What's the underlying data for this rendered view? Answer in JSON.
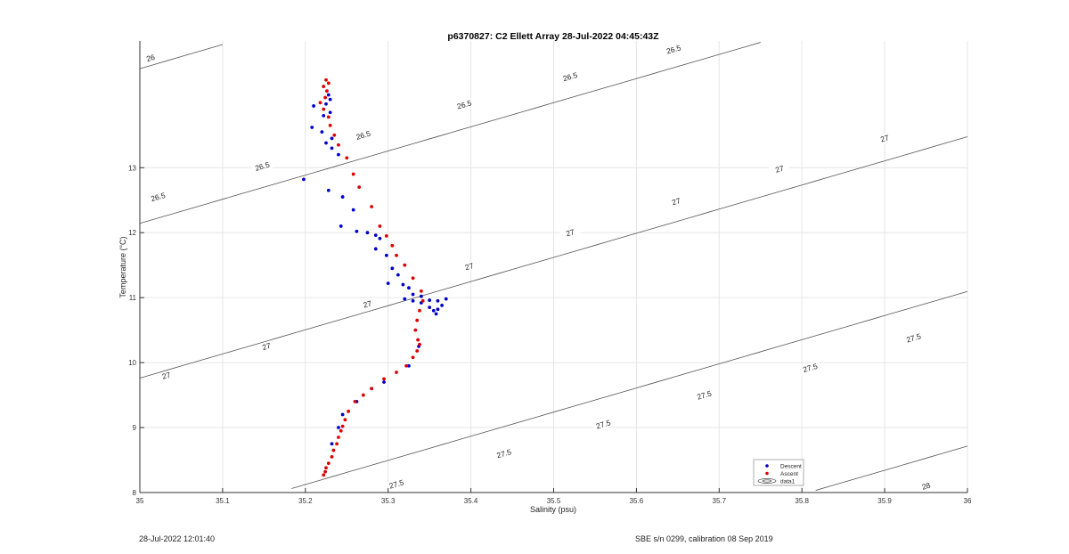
{
  "chart_data": {
    "type": "scatter",
    "title": "p6370827: C2 Ellett Array 28-Jul-2022 04:45:43Z",
    "xlabel": "Salinity (psu)",
    "ylabel": "Temperature (°C)",
    "xlim": [
      35,
      36
    ],
    "ylim": [
      8,
      14.95
    ],
    "xticks": [
      "35",
      "35.1",
      "35.2",
      "35.3",
      "35.4",
      "35.5",
      "35.6",
      "35.7",
      "35.8",
      "35.9",
      "36"
    ],
    "xtick_values": [
      35,
      35.1,
      35.2,
      35.3,
      35.4,
      35.5,
      35.6,
      35.7,
      35.8,
      35.9,
      36
    ],
    "yticks": [
      "8",
      "9",
      "10",
      "11",
      "12",
      "13"
    ],
    "ytick_values": [
      8,
      9,
      10,
      11,
      12,
      13
    ],
    "grid": true,
    "legend_position": "bottom-right",
    "series": [
      {
        "name": "Descent",
        "color": "#0000cc",
        "points": [
          [
            35.228,
            14.12
          ],
          [
            35.23,
            14.05
          ],
          [
            35.225,
            13.98
          ],
          [
            35.21,
            13.95
          ],
          [
            35.23,
            13.85
          ],
          [
            35.222,
            13.8
          ],
          [
            35.208,
            13.62
          ],
          [
            35.22,
            13.55
          ],
          [
            35.232,
            13.45
          ],
          [
            35.225,
            13.38
          ],
          [
            35.232,
            13.3
          ],
          [
            35.24,
            13.2
          ],
          [
            35.198,
            12.82
          ],
          [
            35.228,
            12.65
          ],
          [
            35.245,
            12.55
          ],
          [
            35.258,
            12.35
          ],
          [
            35.243,
            12.1
          ],
          [
            35.262,
            12.02
          ],
          [
            35.275,
            12.0
          ],
          [
            35.285,
            11.96
          ],
          [
            35.29,
            11.91
          ],
          [
            35.285,
            11.75
          ],
          [
            35.298,
            11.65
          ],
          [
            35.305,
            11.45
          ],
          [
            35.312,
            11.35
          ],
          [
            35.3,
            11.22
          ],
          [
            35.318,
            11.2
          ],
          [
            35.325,
            11.15
          ],
          [
            35.33,
            11.05
          ],
          [
            35.34,
            11.02
          ],
          [
            35.35,
            10.96
          ],
          [
            35.36,
            10.95
          ],
          [
            35.37,
            10.98
          ],
          [
            35.365,
            10.88
          ],
          [
            35.36,
            10.82
          ],
          [
            35.358,
            10.75
          ],
          [
            35.33,
            10.95
          ],
          [
            35.32,
            10.98
          ],
          [
            35.34,
            10.92
          ],
          [
            35.35,
            10.85
          ],
          [
            35.355,
            10.8
          ],
          [
            35.337,
            10.25
          ],
          [
            35.325,
            9.95
          ],
          [
            35.295,
            9.7
          ],
          [
            35.28,
            9.6
          ],
          [
            35.262,
            9.4
          ],
          [
            35.245,
            9.2
          ],
          [
            35.24,
            9.0
          ],
          [
            35.232,
            8.75
          ]
        ]
      },
      {
        "name": "Ascent",
        "color": "#dd0000",
        "points": [
          [
            35.225,
            14.35
          ],
          [
            35.228,
            14.3
          ],
          [
            35.222,
            14.25
          ],
          [
            35.226,
            14.18
          ],
          [
            35.224,
            14.08
          ],
          [
            35.218,
            14.0
          ],
          [
            35.222,
            13.9
          ],
          [
            35.228,
            13.78
          ],
          [
            35.23,
            13.65
          ],
          [
            35.235,
            13.5
          ],
          [
            35.24,
            13.35
          ],
          [
            35.25,
            13.15
          ],
          [
            35.258,
            12.9
          ],
          [
            35.265,
            12.7
          ],
          [
            35.28,
            12.4
          ],
          [
            35.29,
            12.1
          ],
          [
            35.298,
            11.95
          ],
          [
            35.305,
            11.8
          ],
          [
            35.31,
            11.65
          ],
          [
            35.32,
            11.5
          ],
          [
            35.33,
            11.3
          ],
          [
            35.34,
            11.1
          ],
          [
            35.342,
            10.95
          ],
          [
            35.338,
            10.8
          ],
          [
            35.335,
            10.65
          ],
          [
            35.333,
            10.5
          ],
          [
            35.336,
            10.35
          ],
          [
            35.338,
            10.28
          ],
          [
            35.335,
            10.18
          ],
          [
            35.33,
            10.08
          ],
          [
            35.322,
            9.95
          ],
          [
            35.31,
            9.85
          ],
          [
            35.295,
            9.75
          ],
          [
            35.28,
            9.6
          ],
          [
            35.27,
            9.5
          ],
          [
            35.26,
            9.4
          ],
          [
            35.252,
            9.25
          ],
          [
            35.248,
            9.12
          ],
          [
            35.245,
            9.02
          ],
          [
            35.243,
            8.95
          ],
          [
            35.24,
            8.85
          ],
          [
            35.238,
            8.75
          ],
          [
            35.234,
            8.65
          ],
          [
            35.232,
            8.55
          ],
          [
            35.228,
            8.45
          ],
          [
            35.225,
            8.38
          ],
          [
            35.224,
            8.32
          ],
          [
            35.222,
            8.27
          ]
        ]
      }
    ],
    "contours": [
      {
        "label": "26",
        "label_positions": [
          [
            35.013,
            14.69
          ]
        ]
      },
      {
        "label": "26.5",
        "label_positions": [
          [
            35.022,
            12.55
          ],
          [
            35.148,
            13.02
          ],
          [
            35.27,
            13.5
          ],
          [
            35.392,
            13.97
          ],
          [
            35.52,
            14.4
          ],
          [
            35.645,
            14.82
          ]
        ]
      },
      {
        "label": "27",
        "label_positions": [
          [
            35.032,
            9.8
          ],
          [
            35.153,
            10.25
          ],
          [
            35.275,
            10.9
          ],
          [
            35.398,
            11.48
          ],
          [
            35.52,
            12.0
          ],
          [
            35.648,
            12.48
          ],
          [
            35.773,
            12.98
          ],
          [
            35.9,
            13.45
          ]
        ]
      },
      {
        "label": "27.5",
        "label_positions": [
          [
            35.31,
            8.13
          ],
          [
            35.44,
            8.6
          ],
          [
            35.56,
            9.05
          ],
          [
            35.682,
            9.5
          ],
          [
            35.81,
            9.92
          ],
          [
            35.935,
            10.38
          ],
          [
            36.035,
            10.8
          ]
        ]
      },
      {
        "label": "28",
        "label_positions": [
          [
            35.95,
            8.1
          ]
        ]
      }
    ],
    "legend": [
      "Descent",
      "Ascent",
      "data1"
    ],
    "footer_left": "28-Jul-2022 12:01:40",
    "footer_right": "SBE s/n 0299, calibration 08 Sep 2019"
  }
}
